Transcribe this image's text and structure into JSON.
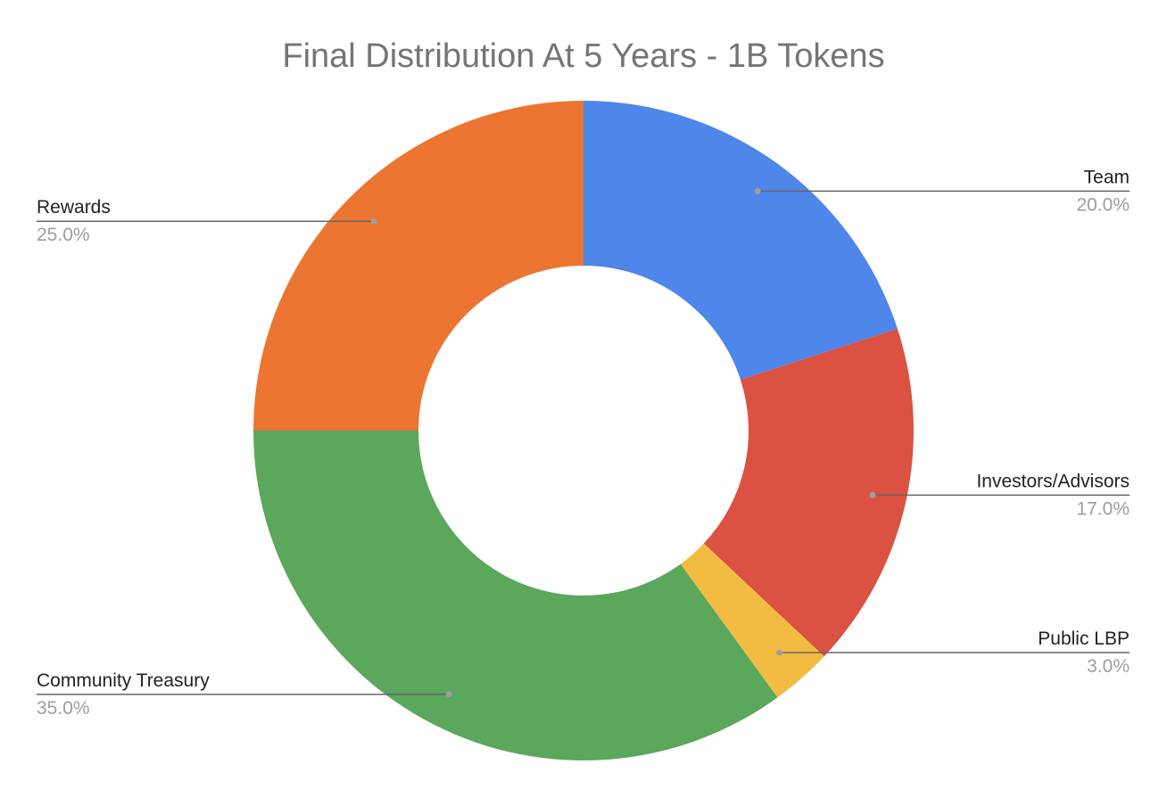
{
  "chart_data": {
    "type": "pie",
    "donut": true,
    "title": "Final Distribution At 5 Years - 1B Tokens",
    "unit": "%",
    "slices": [
      {
        "label": "Team",
        "value": 20.0,
        "display": "20.0%",
        "color": "#4E86EA"
      },
      {
        "label": "Investors/Advisors",
        "value": 17.0,
        "display": "17.0%",
        "color": "#DB5142"
      },
      {
        "label": "Public LBP",
        "value": 3.0,
        "display": "3.0%",
        "color": "#F2BC42"
      },
      {
        "label": "Community Treasury",
        "value": 35.0,
        "display": "35.0%",
        "color": "#5BA75C"
      },
      {
        "label": "Rewards",
        "value": 25.0,
        "display": "25.0%",
        "color": "#EC7531"
      }
    ],
    "start_angle": "12 o'clock",
    "direction": "clockwise",
    "legend": "none",
    "labels": "outside with leader lines"
  }
}
